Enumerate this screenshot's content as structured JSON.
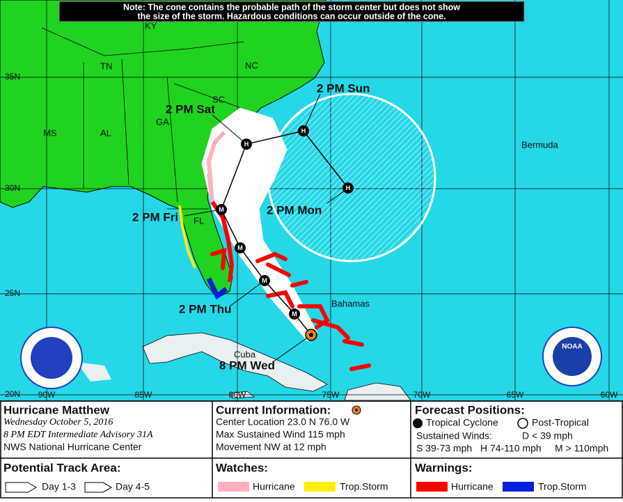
{
  "note": [
    "Note: The cone contains the probable path of the storm center but does not show",
    "the size of the storm. Hazardous conditions can occur outside of the cone."
  ],
  "map": {
    "states": [
      "KY",
      "TN",
      "NC",
      "SC",
      "GA",
      "AL",
      "MS",
      "FL"
    ],
    "places": [
      "Bermuda",
      "Bahamas",
      "Cuba"
    ],
    "latitudes": [
      "35N",
      "30N",
      "25N",
      "20N"
    ],
    "longitudes": [
      "90W",
      "85W",
      "80W",
      "75W",
      "70W",
      "65W",
      "60W"
    ],
    "forecast_labels": [
      "8 PM Wed",
      "2 PM Thu",
      "2 PM Fri",
      "2 PM Sat",
      "2 PM Sun",
      "2 PM Mon"
    ],
    "points": [
      "M",
      "M",
      "M",
      "M",
      "H",
      "H",
      "H"
    ],
    "logo": "NOAA"
  },
  "storm": {
    "name": "Hurricane Matthew",
    "date": "Wednesday October 5, 2016",
    "advisory": "8 PM EDT Intermediate Advisory 31A",
    "center": "NWS National Hurricane Center"
  },
  "current": {
    "title": "Current Information:",
    "lines": [
      "Center Location 23.0 N 76.0 W",
      "Max Sustained Wind 115 mph",
      "Movement NW at 12 mph"
    ]
  },
  "forecast_positions": {
    "title": "Forecast Positions:",
    "tropical": "Tropical Cyclone",
    "post_tropical": "Post-Tropical",
    "winds_title": "Sustained Winds:",
    "scale": [
      "D < 39 mph",
      "S 39-73 mph",
      "H 74-110 mph",
      "M > 110mph"
    ]
  },
  "track_area": {
    "title": "Potential Track Area:",
    "items": [
      "Day 1-3",
      "Day 4-5"
    ]
  },
  "watches": {
    "title": "Watches:",
    "items": [
      "Hurricane",
      "Trop.Storm"
    ]
  },
  "warnings": {
    "title": "Warnings:",
    "items": [
      "Hurricane",
      "Trop.Storm"
    ]
  }
}
